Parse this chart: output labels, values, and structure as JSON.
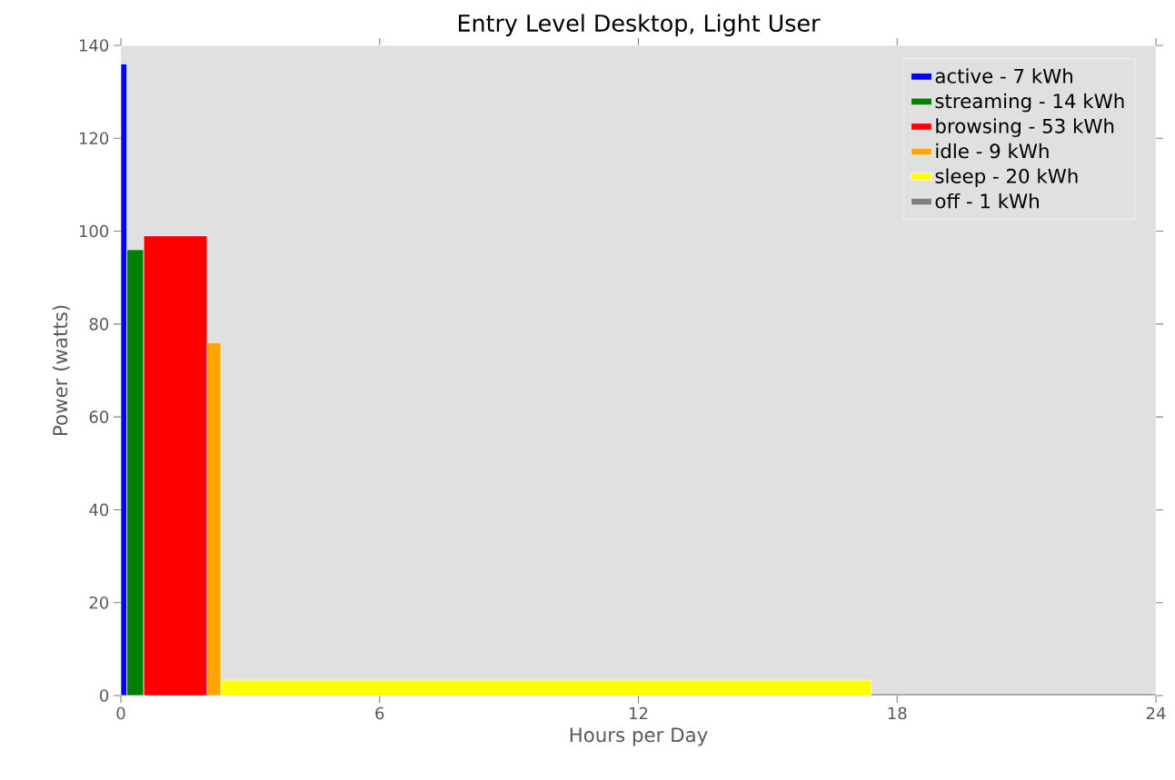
{
  "chart_data": {
    "type": "histogram",
    "title": "Entry Level Desktop, Light User",
    "xlabel": "Hours per Day",
    "ylabel": "Power (watts)",
    "xlim": [
      0,
      24
    ],
    "xticks": [
      0,
      6,
      12,
      18,
      24
    ],
    "ylim": [
      0,
      140
    ],
    "yticks": [
      0,
      20,
      40,
      60,
      80,
      100,
      120,
      140
    ],
    "legend": "top right",
    "bins": [
      0,
      0.14,
      0.53,
      2.0,
      2.32,
      17.4,
      24
    ],
    "series": [
      {
        "name": "active - 7 kWh",
        "color": "#0000ff",
        "values": [
          136,
          null,
          null,
          null,
          null,
          null
        ]
      },
      {
        "name": "streaming - 14 kWh",
        "color": "#008000",
        "values": [
          null,
          96,
          null,
          null,
          null,
          null
        ]
      },
      {
        "name": "browsing - 53 kWh",
        "color": "#ff0000",
        "values": [
          null,
          null,
          99,
          null,
          null,
          null
        ]
      },
      {
        "name": "idle - 9 kWh",
        "color": "#ffa500",
        "values": [
          null,
          null,
          null,
          76,
          null,
          null
        ]
      },
      {
        "name": "sleep - 20 kWh",
        "color": "#ffff00",
        "values": [
          null,
          null,
          null,
          null,
          3.3,
          null
        ]
      },
      {
        "name": "off - 1 kWh",
        "color": "#808080",
        "values": [
          null,
          null,
          null,
          null,
          null,
          0.4
        ]
      }
    ]
  }
}
